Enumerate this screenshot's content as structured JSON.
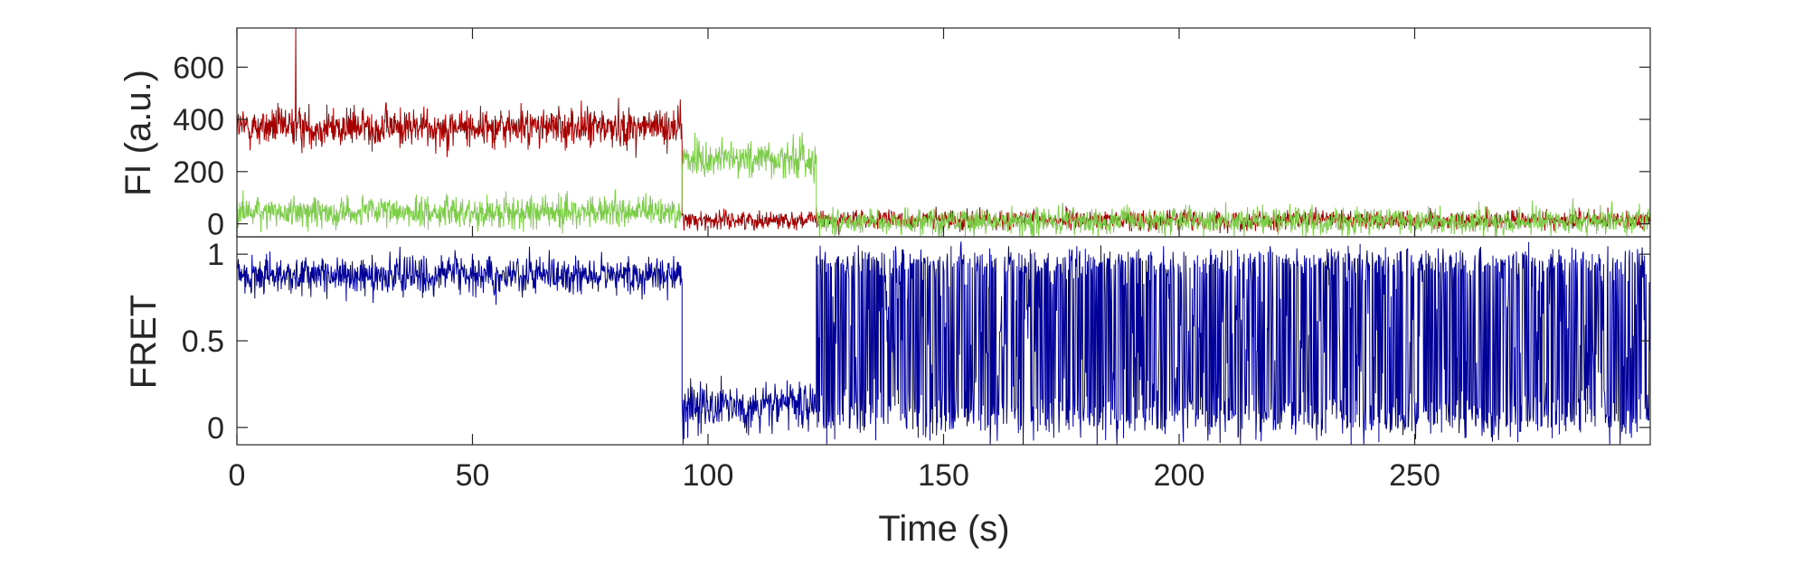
{
  "chart_data": [
    {
      "type": "line",
      "ylabel": "FI (a.u.)",
      "xlabel": "",
      "xlim": [
        0,
        300
      ],
      "ylim": [
        -50,
        750
      ],
      "xticks": [
        0,
        50,
        100,
        150,
        200,
        250
      ],
      "yticks": [
        0,
        200,
        400,
        600
      ],
      "ytick_labels": [
        "0",
        "200",
        "400",
        "600"
      ],
      "grid": false,
      "series": [
        {
          "color": "#A50000",
          "segments": [
            {
              "x": [
                0,
                94.5
              ],
              "mean": 370,
              "noise": 65
            },
            {
              "x": [
                94.5,
                300
              ],
              "mean": 15,
              "noise": 30
            }
          ],
          "peak": {
            "x": 12.5,
            "y": 750
          }
        },
        {
          "color": "#7DCD4B",
          "segments": [
            {
              "x": [
                0,
                94.5
              ],
              "mean": 45,
              "noise": 50
            },
            {
              "x": [
                94.5,
                123
              ],
              "mean": 250,
              "noise": 65
            },
            {
              "x": [
                123,
                300
              ],
              "mean": 10,
              "noise": 45
            }
          ]
        }
      ]
    },
    {
      "type": "line",
      "ylabel": "FRET",
      "xlabel": "Time (s)",
      "xlim": [
        0,
        300
      ],
      "ylim": [
        -0.1,
        1.1
      ],
      "xticks": [
        0,
        50,
        100,
        150,
        200,
        250
      ],
      "xtick_labels": [
        "0",
        "50",
        "100",
        "150",
        "200",
        "250"
      ],
      "yticks": [
        0,
        0.5,
        1
      ],
      "ytick_labels": [
        "0",
        "0.5",
        "1"
      ],
      "grid": false,
      "series": [
        {
          "color": "#000096",
          "segments": [
            {
              "x": [
                0,
                94.5
              ],
              "mean": 0.88,
              "noise": 0.09
            },
            {
              "x": [
                94.5,
                123
              ],
              "mean": 0.12,
              "noise": 0.12
            },
            {
              "x": [
                123,
                300
              ],
              "mean": 0.5,
              "noise": 0.6,
              "switching": true
            }
          ]
        }
      ]
    }
  ]
}
